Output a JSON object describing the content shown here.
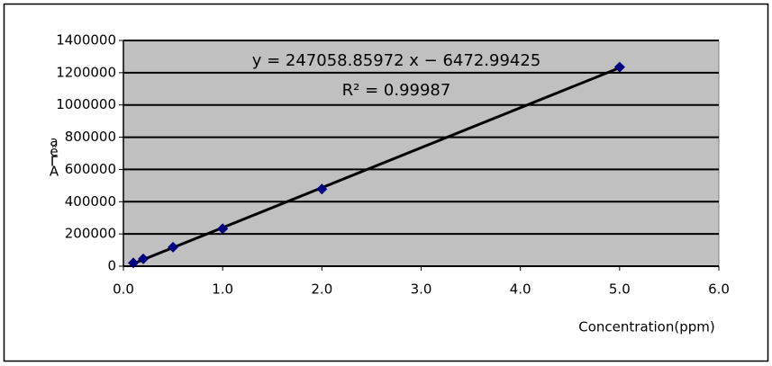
{
  "chart_data": {
    "type": "scatter",
    "equation": "y = 247058.85972  x − 6472.99425",
    "r_squared": "R² = 0.99987",
    "xlabel": "Concentration(ppm)",
    "ylabel": [
      "a",
      "ê",
      "Γ",
      "A"
    ],
    "series": [
      {
        "color": "#000080",
        "x": [
          0.1,
          0.2,
          0.5,
          1.0,
          2.0,
          5.0
        ],
        "values": [
          20000,
          45000,
          118000,
          232000,
          478000,
          1235000
        ]
      }
    ],
    "trendline_color": "#000000",
    "plot_background": "#c0c0c0",
    "xlim": [
      0,
      6
    ],
    "xticks": [
      {
        "value": 0,
        "label": "0.0"
      },
      {
        "value": 1,
        "label": "1.0"
      },
      {
        "value": 2,
        "label": "2.0"
      },
      {
        "value": 3,
        "label": "3.0"
      },
      {
        "value": 4,
        "label": "4.0"
      },
      {
        "value": 5,
        "label": "5.0"
      },
      {
        "value": 6,
        "label": "6.0"
      }
    ],
    "ylim": [
      0,
      1400000
    ],
    "yticks": [
      0,
      200000,
      400000,
      600000,
      800000,
      1000000,
      1200000,
      1400000
    ],
    "grid": true
  }
}
